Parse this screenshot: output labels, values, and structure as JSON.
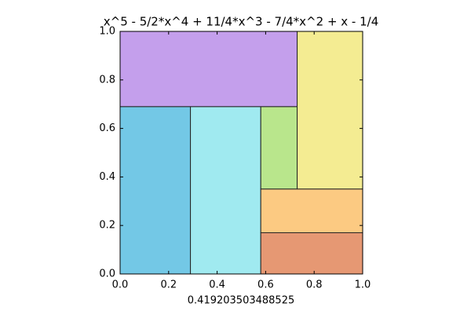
{
  "chart_data": {
    "type": "rects",
    "title": "x^5 - 5/2*x^4 + 11/4*x^3 - 7/4*x^2 + x - 1/4",
    "xlabel": "0.419203503488525",
    "xlim": [
      0,
      1
    ],
    "ylim": [
      0,
      1
    ],
    "xticks": [
      {
        "value": 0,
        "label": "0.0"
      },
      0.2,
      0.4,
      0.6,
      0.8,
      {
        "value": 1,
        "label": "1.0"
      }
    ],
    "yticks": [
      {
        "value": 0,
        "label": "0.0"
      },
      0.2,
      0.4,
      0.6,
      0.8,
      {
        "value": 1,
        "label": "1.0"
      }
    ],
    "rects": [
      {
        "x": [
          0,
          0.29
        ],
        "y": [
          0,
          0.69
        ],
        "color": "#73c8e6"
      },
      {
        "x": [
          0.29,
          0.58
        ],
        "y": [
          0,
          0.69
        ],
        "color": "#a0eaf0"
      },
      {
        "x": [
          0.58,
          0.73
        ],
        "y": [
          0.35,
          0.69
        ],
        "color": "#b9e68c"
      },
      {
        "x": [
          0,
          0.73
        ],
        "y": [
          0.69,
          1
        ],
        "color": "#c49fec"
      },
      {
        "x": [
          0.73,
          1
        ],
        "y": [
          0.35,
          1
        ],
        "color": "#f4ec92"
      },
      {
        "x": [
          0.58,
          1
        ],
        "y": [
          0.17,
          0.35
        ],
        "color": "#fcca82"
      },
      {
        "x": [
          0.58,
          1
        ],
        "y": [
          0,
          0.17
        ],
        "color": "#e69873"
      }
    ]
  }
}
